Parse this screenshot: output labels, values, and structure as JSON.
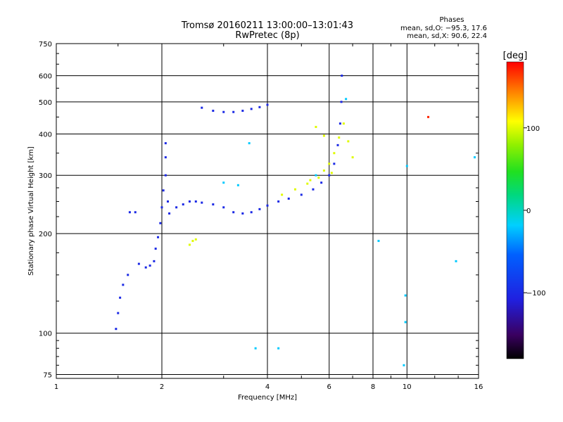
{
  "chart_data": {
    "type": "scatter",
    "title": "Tromsø 20160211 13:00:00–13:01:43",
    "subtitle": "RwPretec (8p)",
    "stats": {
      "heading": "Phases",
      "line1": "mean, sd,O: −95.3, 17.6",
      "line2": "mean, sd,X:  90.6, 22.4"
    },
    "xlabel": "Frequency [MHz]",
    "ylabel": "Stationary phase Virtual Height [km]",
    "x_scale": "log",
    "y_scale": "log",
    "xlim": [
      1,
      16
    ],
    "ylim": [
      73,
      750
    ],
    "grid": true,
    "x_ticks": [
      {
        "value": 1,
        "label": "1"
      },
      {
        "value": 2,
        "label": "2"
      },
      {
        "value": 4,
        "label": "4"
      },
      {
        "value": 6,
        "label": "6"
      },
      {
        "value": 8,
        "label": "8"
      },
      {
        "value": 10,
        "label": "10"
      },
      {
        "value": 16,
        "label": "16"
      }
    ],
    "y_ticks": [
      {
        "value": 75,
        "label": "75"
      },
      {
        "value": 100,
        "label": "100"
      },
      {
        "value": 200,
        "label": "200"
      },
      {
        "value": 300,
        "label": "300"
      },
      {
        "value": 400,
        "label": "400"
      },
      {
        "value": 500,
        "label": "500"
      },
      {
        "value": 600,
        "label": "600"
      },
      {
        "value": 750,
        "label": "750"
      }
    ],
    "colorbar": {
      "label": "[deg]",
      "range": [
        -180,
        180
      ],
      "ticks": [
        {
          "value": 100,
          "label": "100"
        },
        {
          "value": 0,
          "label": "0"
        },
        {
          "value": -100,
          "label": "−100"
        }
      ]
    },
    "series": [
      {
        "trace": "o-mode F-layer trace (blue)",
        "phase": -100,
        "points": [
          [
            1.48,
            103
          ],
          [
            1.5,
            115
          ],
          [
            1.52,
            128
          ],
          [
            1.55,
            140
          ],
          [
            1.6,
            150
          ],
          [
            1.62,
            232
          ],
          [
            1.68,
            232
          ],
          [
            1.72,
            162
          ],
          [
            1.8,
            158
          ],
          [
            1.85,
            160
          ],
          [
            1.9,
            165
          ],
          [
            1.92,
            180
          ],
          [
            1.95,
            195
          ],
          [
            1.98,
            215
          ],
          [
            2.0,
            240
          ],
          [
            2.02,
            270
          ],
          [
            2.05,
            300
          ],
          [
            2.05,
            340
          ],
          [
            2.05,
            375
          ],
          [
            2.08,
            250
          ],
          [
            2.1,
            230
          ],
          [
            2.2,
            240
          ],
          [
            2.3,
            245
          ],
          [
            2.4,
            250
          ],
          [
            2.5,
            250
          ],
          [
            2.6,
            248
          ],
          [
            2.8,
            245
          ],
          [
            3.0,
            240
          ],
          [
            3.2,
            232
          ],
          [
            3.4,
            230
          ],
          [
            3.6,
            232
          ],
          [
            3.8,
            237
          ],
          [
            4.0,
            243
          ],
          [
            4.3,
            250
          ],
          [
            4.6,
            255
          ],
          [
            5.0,
            262
          ],
          [
            5.4,
            272
          ],
          [
            5.7,
            285
          ],
          [
            6.0,
            300
          ],
          [
            6.2,
            325
          ],
          [
            6.35,
            370
          ],
          [
            6.45,
            430
          ],
          [
            6.5,
            500
          ],
          [
            6.52,
            600
          ],
          [
            2.6,
            480
          ],
          [
            2.8,
            470
          ],
          [
            3.0,
            466
          ],
          [
            3.2,
            466
          ],
          [
            3.4,
            470
          ],
          [
            3.6,
            476
          ],
          [
            3.8,
            482
          ],
          [
            4.0,
            490
          ]
        ]
      },
      {
        "trace": "x-mode trace (yellow/green)",
        "phase": 100,
        "points": [
          [
            2.4,
            185
          ],
          [
            2.45,
            190
          ],
          [
            2.5,
            192
          ],
          [
            4.4,
            262
          ],
          [
            4.8,
            272
          ],
          [
            5.2,
            283
          ],
          [
            5.6,
            295
          ],
          [
            5.8,
            310
          ],
          [
            6.0,
            325
          ],
          [
            6.2,
            350
          ],
          [
            6.4,
            390
          ],
          [
            6.6,
            430
          ],
          [
            6.8,
            380
          ],
          [
            7.0,
            340
          ],
          [
            5.5,
            420
          ],
          [
            5.8,
            395
          ],
          [
            6.1,
            305
          ],
          [
            5.3,
            290
          ]
        ]
      },
      {
        "trace": "scatter / noise (cyan)",
        "phase": -20,
        "points": [
          [
            3.0,
            285
          ],
          [
            3.3,
            280
          ],
          [
            3.55,
            375
          ],
          [
            3.7,
            90
          ],
          [
            4.3,
            90
          ],
          [
            5.5,
            300
          ],
          [
            6.7,
            510
          ],
          [
            8.3,
            190
          ],
          [
            9.8,
            80
          ],
          [
            9.9,
            108
          ],
          [
            10.0,
            320
          ],
          [
            9.9,
            130
          ],
          [
            13.8,
            165
          ],
          [
            15.6,
            340
          ]
        ]
      },
      {
        "trace": "isolated high-phase points (red)",
        "phase": 170,
        "points": [
          [
            11.5,
            450
          ]
        ]
      }
    ]
  }
}
